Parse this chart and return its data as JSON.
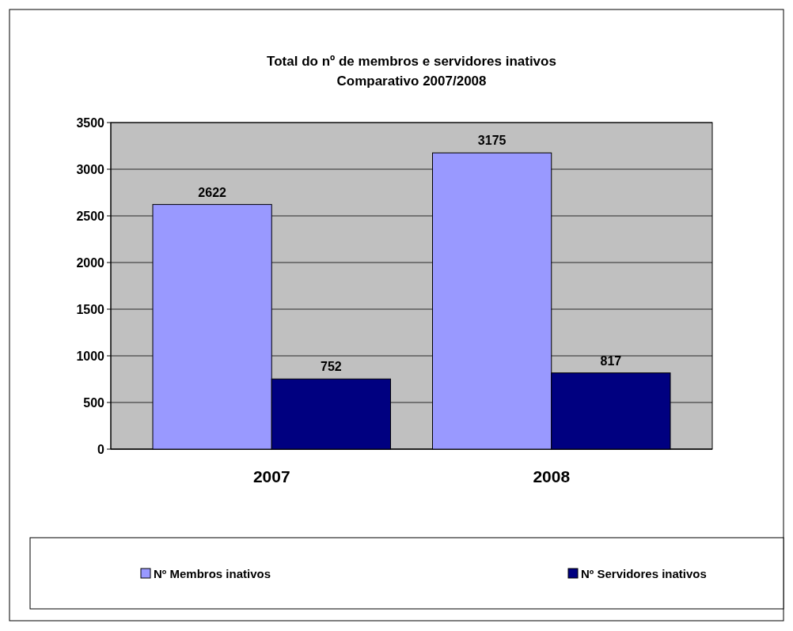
{
  "chart_data": {
    "type": "bar",
    "title": "Total do nº de membros e servidores inativos",
    "subtitle": "Comparativo 2007/2008",
    "categories": [
      "2007",
      "2008"
    ],
    "series": [
      {
        "name": "Nº Membros inativos",
        "color": "#9999ff",
        "values": [
          2622,
          3175
        ]
      },
      {
        "name": "Nº Servidores inativos",
        "color": "#000080",
        "values": [
          752,
          817
        ]
      }
    ],
    "ylim": [
      0,
      3500
    ],
    "yticks": [
      0,
      500,
      1000,
      1500,
      2000,
      2500,
      3000,
      3500
    ],
    "grid": "y",
    "data_labels": true,
    "legend": "bottom"
  }
}
